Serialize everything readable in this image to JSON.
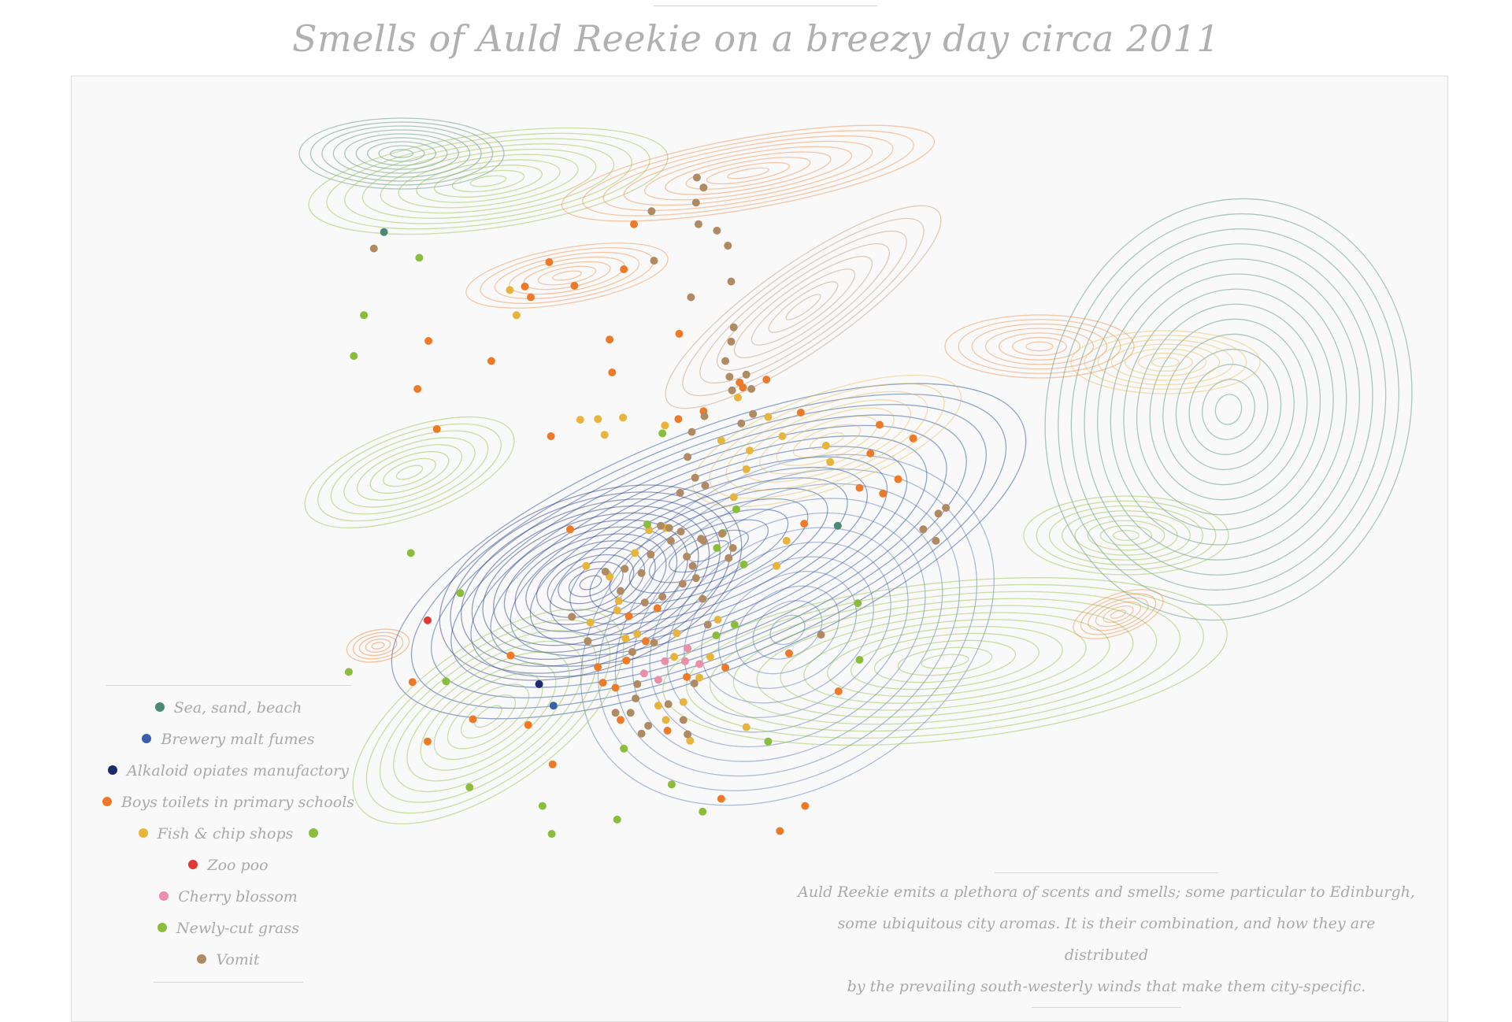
{
  "title": "Smells of Auld Reekie on a breezy day circa 2011",
  "caption": [
    "Auld Reekie emits a plethora of scents and smells; some particular to Edinburgh,",
    "some ubiquitous city aromas. It is their combination, and how they are distributed",
    "by the prevailing south-westerly winds that make them city-specific."
  ],
  "colors": {
    "background": "#ffffff",
    "panel": "#f9f9f9",
    "text": "#a9a9a9",
    "sea": "#4b8a74",
    "brewery": "#3a5fa8",
    "alkaloid": "#1e2a6e",
    "toilets": "#ee7a28",
    "fish": "#e7b43c",
    "zoo": "#e03a36",
    "cherry": "#ec8ea8",
    "grass": "#8bbd3c",
    "vomit": "#b08a62"
  },
  "chart_data": {
    "type": "scatter",
    "xlim": [
      0,
      100
    ],
    "ylim": [
      0,
      100
    ],
    "grid": false,
    "axes": false,
    "legend_position": "bottom-left",
    "legend": [
      {
        "key": "sea",
        "label": "Sea, sand, beach",
        "color": "#4b8a74"
      },
      {
        "key": "brewery",
        "label": "Brewery malt fumes",
        "color": "#3a5fa8"
      },
      {
        "key": "alkaloid",
        "label": "Alkaloid opiates manufactory",
        "color": "#1e2a6e"
      },
      {
        "key": "toilets",
        "label": "Boys toilets in primary schools",
        "color": "#ee7a28"
      },
      {
        "key": "fish",
        "label": "Fish & chip shops",
        "color": "#e7b43c",
        "extra_marker_color": "#8bbd3c"
      },
      {
        "key": "zoo",
        "label": "Zoo poo",
        "color": "#e03a36"
      },
      {
        "key": "cherry",
        "label": "Cherry blossom",
        "color": "#ec8ea8"
      },
      {
        "key": "grass",
        "label": "Newly-cut grass",
        "color": "#8bbd3c"
      },
      {
        "key": "vomit",
        "label": "Vomit",
        "color": "#b08a62"
      }
    ],
    "series": [
      {
        "key": "sea",
        "color": "#4b8a74",
        "points": [
          [
            14.8,
            84.1
          ],
          [
            68.9,
            43.1
          ]
        ]
      },
      {
        "key": "brewery",
        "color": "#3a5fa8",
        "points": [
          [
            35.0,
            18.0
          ]
        ]
      },
      {
        "key": "alkaloid",
        "color": "#1e2a6e",
        "points": [
          [
            33.3,
            21.0
          ]
        ]
      },
      {
        "key": "toilets",
        "color": "#ee7a28",
        "points": [
          [
            44.6,
            85.2
          ],
          [
            43.4,
            78.9
          ],
          [
            37.5,
            76.6
          ],
          [
            34.5,
            79.9
          ],
          [
            31.6,
            76.5
          ],
          [
            32.3,
            75.0
          ],
          [
            20.1,
            68.9
          ],
          [
            18.8,
            62.2
          ],
          [
            21.1,
            56.6
          ],
          [
            27.6,
            66.1
          ],
          [
            41.7,
            69.1
          ],
          [
            42.0,
            64.5
          ],
          [
            50.0,
            69.9
          ],
          [
            57.2,
            63.1
          ],
          [
            60.4,
            63.5
          ],
          [
            57.6,
            62.4
          ],
          [
            52.9,
            59.1
          ],
          [
            49.9,
            58.0
          ],
          [
            34.7,
            55.6
          ],
          [
            29.9,
            25.0
          ],
          [
            18.2,
            21.3
          ],
          [
            25.4,
            16.1
          ],
          [
            32.0,
            15.3
          ],
          [
            34.9,
            9.8
          ],
          [
            37.0,
            42.6
          ],
          [
            40.3,
            23.4
          ],
          [
            40.9,
            21.2
          ],
          [
            43.7,
            24.3
          ],
          [
            48.6,
            14.5
          ],
          [
            42.4,
            20.5
          ],
          [
            46.0,
            27.0
          ],
          [
            55.5,
            23.3
          ],
          [
            50.9,
            22.0
          ],
          [
            47.4,
            31.6
          ],
          [
            44.0,
            30.5
          ],
          [
            63.1,
            25.3
          ],
          [
            77.9,
            55.3
          ],
          [
            76.1,
            49.6
          ],
          [
            74.3,
            47.6
          ],
          [
            73.9,
            57.2
          ],
          [
            72.8,
            53.2
          ],
          [
            71.5,
            48.4
          ],
          [
            64.5,
            58.9
          ],
          [
            64.9,
            43.4
          ],
          [
            43.0,
            16.0
          ],
          [
            20.0,
            13.0
          ],
          [
            55.0,
            5.0
          ],
          [
            62.0,
            0.5
          ],
          [
            69.0,
            20.0
          ],
          [
            65.0,
            4.0
          ]
        ]
      },
      {
        "key": "fish",
        "color": "#e7b43c",
        "points": [
          [
            29.8,
            76.0
          ],
          [
            30.6,
            72.5
          ],
          [
            38.2,
            57.9
          ],
          [
            40.3,
            58.0
          ],
          [
            43.3,
            58.2
          ],
          [
            41.1,
            55.8
          ],
          [
            48.3,
            57.1
          ],
          [
            55.0,
            55.0
          ],
          [
            60.6,
            58.3
          ],
          [
            62.3,
            55.6
          ],
          [
            56.5,
            47.1
          ],
          [
            62.8,
            41.0
          ],
          [
            58.4,
            53.6
          ],
          [
            58.0,
            51.0
          ],
          [
            48.4,
            42.8
          ],
          [
            46.4,
            42.5
          ],
          [
            44.7,
            39.3
          ],
          [
            42.8,
            32.6
          ],
          [
            38.9,
            37.5
          ],
          [
            39.4,
            29.6
          ],
          [
            42.6,
            31.3
          ],
          [
            41.7,
            36.0
          ],
          [
            45.0,
            28.0
          ],
          [
            49.7,
            28.1
          ],
          [
            49.4,
            24.8
          ],
          [
            52.4,
            21.9
          ],
          [
            50.5,
            18.5
          ],
          [
            48.4,
            16.0
          ],
          [
            43.6,
            27.4
          ],
          [
            47.5,
            18.0
          ],
          [
            51.3,
            13.1
          ],
          [
            53.7,
            24.8
          ],
          [
            54.6,
            30.0
          ],
          [
            58.0,
            15.0
          ],
          [
            61.6,
            37.5
          ],
          [
            67.5,
            54.3
          ],
          [
            68.0,
            52.0
          ],
          [
            57.0,
            61.0
          ]
        ]
      },
      {
        "key": "zoo",
        "color": "#e03a36",
        "points": [
          [
            20.0,
            29.9
          ]
        ]
      },
      {
        "key": "cherry",
        "color": "#ec8ea8",
        "points": [
          [
            45.8,
            22.5
          ],
          [
            48.3,
            24.2
          ],
          [
            50.7,
            24.2
          ],
          [
            52.4,
            23.8
          ],
          [
            51.0,
            26.0
          ],
          [
            47.5,
            21.6
          ]
        ]
      },
      {
        "key": "grass",
        "color": "#8bbd3c",
        "points": [
          [
            19.0,
            80.5
          ],
          [
            12.4,
            72.5
          ],
          [
            11.2,
            66.8
          ],
          [
            10.6,
            22.7
          ],
          [
            18.0,
            39.3
          ],
          [
            22.2,
            21.4
          ],
          [
            23.9,
            33.7
          ],
          [
            33.7,
            4.0
          ],
          [
            34.8,
            0.1
          ],
          [
            42.6,
            2.1
          ],
          [
            43.4,
            12.0
          ],
          [
            49.1,
            7.0
          ],
          [
            52.8,
            3.2
          ],
          [
            46.2,
            43.3
          ],
          [
            48.0,
            56.0
          ],
          [
            54.5,
            40.0
          ],
          [
            57.7,
            37.7
          ],
          [
            56.6,
            29.3
          ],
          [
            60.6,
            13.0
          ],
          [
            54.4,
            27.8
          ],
          [
            71.5,
            24.4
          ],
          [
            55.2,
            42.1
          ],
          [
            56.8,
            45.4
          ],
          [
            71.3,
            32.3
          ],
          [
            25.0,
            6.6
          ]
        ]
      },
      {
        "key": "vomit",
        "color": "#b08a62",
        "points": [
          [
            13.6,
            81.8
          ],
          [
            52.1,
            91.7
          ],
          [
            52.9,
            90.3
          ],
          [
            52.0,
            88.2
          ],
          [
            46.7,
            87.0
          ],
          [
            52.3,
            85.2
          ],
          [
            54.5,
            84.3
          ],
          [
            55.8,
            82.2
          ],
          [
            47.0,
            80.1
          ],
          [
            56.2,
            77.2
          ],
          [
            51.4,
            75.0
          ],
          [
            56.5,
            70.8
          ],
          [
            56.2,
            68.8
          ],
          [
            55.5,
            66.1
          ],
          [
            56.0,
            63.9
          ],
          [
            58.0,
            64.2
          ],
          [
            58.6,
            62.2
          ],
          [
            56.3,
            62.0
          ],
          [
            58.8,
            58.7
          ],
          [
            57.4,
            57.4
          ],
          [
            53.0,
            58.4
          ],
          [
            51.5,
            56.2
          ],
          [
            51.0,
            52.7
          ],
          [
            51.9,
            49.8
          ],
          [
            53.1,
            48.7
          ],
          [
            50.1,
            47.7
          ],
          [
            47.8,
            43.1
          ],
          [
            48.8,
            42.8
          ],
          [
            50.2,
            42.3
          ],
          [
            52.6,
            41.3
          ],
          [
            55.1,
            42.0
          ],
          [
            56.4,
            40.0
          ],
          [
            55.9,
            38.6
          ],
          [
            49.0,
            41.0
          ],
          [
            50.9,
            38.8
          ],
          [
            51.6,
            37.5
          ],
          [
            52.0,
            35.8
          ],
          [
            52.8,
            32.9
          ],
          [
            50.4,
            35.0
          ],
          [
            46.6,
            39.1
          ],
          [
            45.5,
            36.5
          ],
          [
            43.5,
            37.1
          ],
          [
            41.2,
            36.7
          ],
          [
            37.2,
            30.4
          ],
          [
            39.1,
            27.0
          ],
          [
            43.0,
            34.0
          ],
          [
            53.4,
            29.3
          ],
          [
            48.0,
            33.2
          ],
          [
            45.9,
            32.4
          ],
          [
            45.0,
            21.0
          ],
          [
            44.8,
            19.0
          ],
          [
            44.2,
            17.0
          ],
          [
            48.7,
            18.2
          ],
          [
            51.8,
            21.1
          ],
          [
            50.5,
            16.0
          ],
          [
            51.0,
            14.0
          ],
          [
            46.3,
            15.2
          ],
          [
            45.5,
            14.1
          ],
          [
            42.4,
            17.0
          ],
          [
            79.1,
            42.6
          ],
          [
            80.6,
            41.0
          ],
          [
            80.9,
            44.8
          ],
          [
            81.8,
            45.6
          ],
          [
            66.9,
            27.9
          ],
          [
            52.9,
            41.0
          ],
          [
            44.4,
            25.5
          ],
          [
            47.0,
            26.8
          ]
        ]
      }
    ]
  }
}
